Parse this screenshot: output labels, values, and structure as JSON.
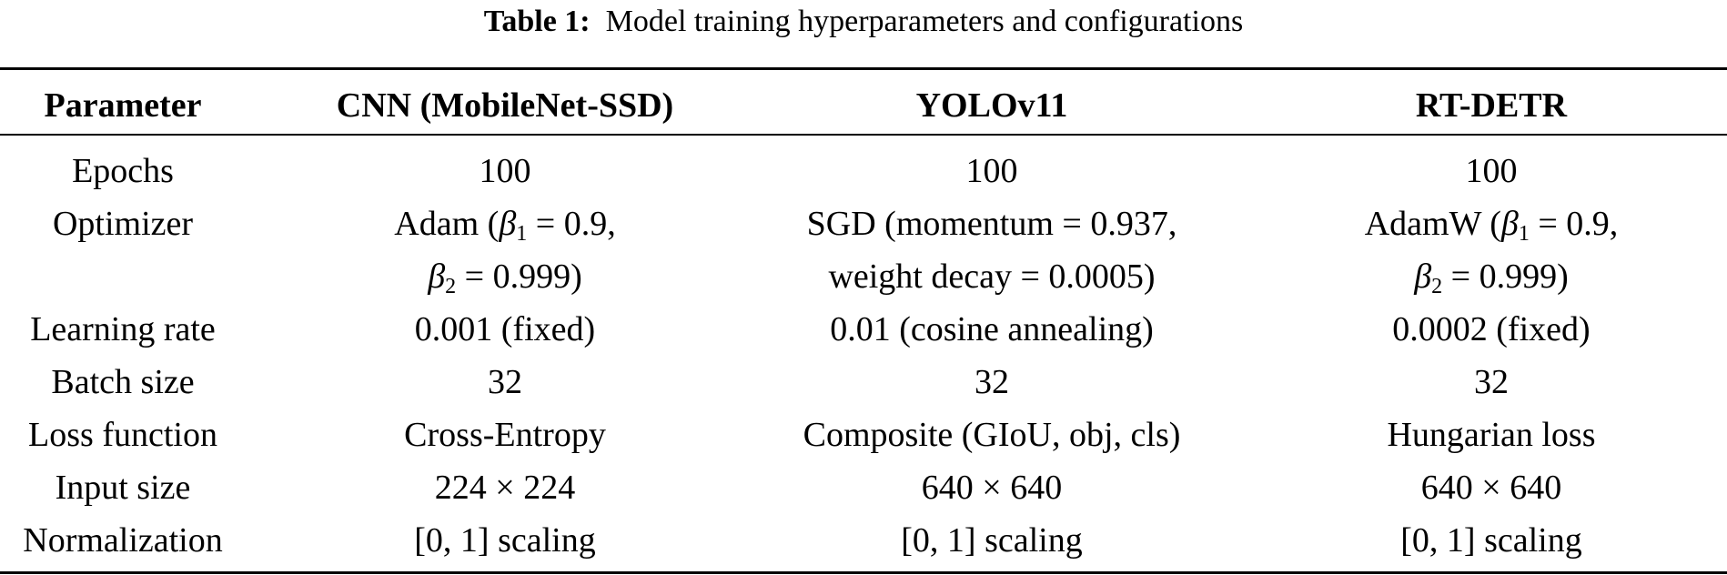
{
  "caption": {
    "label": "Table 1:",
    "text": "Model training hyperparameters and configurations"
  },
  "headers": [
    "Parameter",
    "CNN (MobileNet-SSD)",
    "YOLOv11",
    "RT-DETR"
  ],
  "rows": [
    {
      "param": "Epochs",
      "cnn": "100",
      "yolo": "100",
      "rtdetr": "100"
    },
    {
      "param": "Optimizer",
      "cnn": {
        "line1_pre": "Adam (",
        "beta1_sym": "β",
        "beta1_sub": "1",
        "line1_post": " = 0.9,",
        "beta2_sym": "β",
        "beta2_sub": "2",
        "line2_post": " = 0.999)"
      },
      "yolo": {
        "line1": "SGD (momentum = 0.937,",
        "line2": "weight decay = 0.0005)"
      },
      "rtdetr": {
        "line1_pre": "AdamW (",
        "beta1_sym": "β",
        "beta1_sub": "1",
        "line1_post": " = 0.9,",
        "beta2_sym": "β",
        "beta2_sub": "2",
        "line2_post": " = 0.999)"
      }
    },
    {
      "param": "Learning rate",
      "cnn": "0.001 (fixed)",
      "yolo": "0.01 (cosine annealing)",
      "rtdetr": "0.0002 (fixed)"
    },
    {
      "param": "Batch size",
      "cnn": "32",
      "yolo": "32",
      "rtdetr": "32"
    },
    {
      "param": "Loss function",
      "cnn": "Cross-Entropy",
      "yolo": "Composite (GIoU, obj, cls)",
      "rtdetr": "Hungarian loss"
    },
    {
      "param": "Input size",
      "cnn": "224 × 224",
      "yolo": "640 × 640",
      "rtdetr": "640 × 640"
    },
    {
      "param": "Normalization",
      "cnn": "[0, 1] scaling",
      "yolo": "[0, 1] scaling",
      "rtdetr": "[0, 1] scaling"
    }
  ]
}
